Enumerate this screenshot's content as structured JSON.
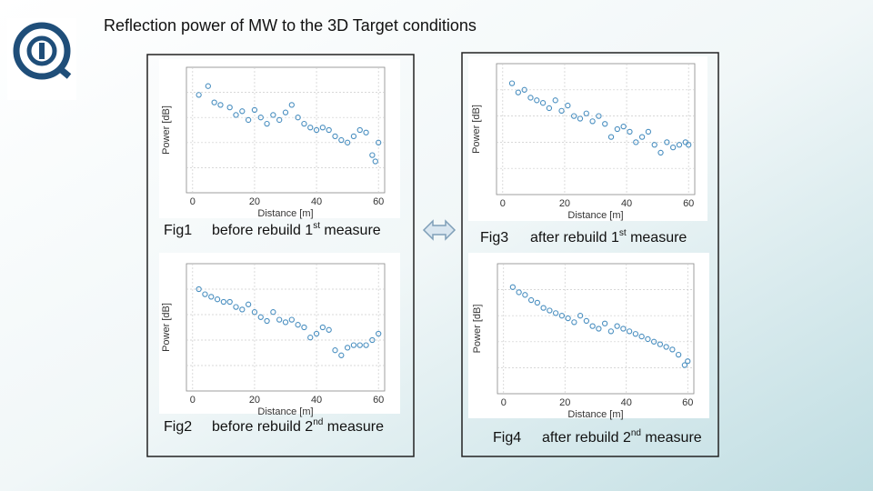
{
  "title": "Reflection power of MW  to the 3D Target conditions",
  "figures": [
    {
      "label": "Fig1",
      "caption": "before rebuild 1",
      "sup": "st",
      "caption_end": " measure",
      "chart_data": {
        "type": "scatter",
        "xlabel": "Distance [m]",
        "ylabel": "Power [dB]",
        "color": "#4a8fc0",
        "xlim": [
          -2,
          62
        ],
        "ylim": [
          0,
          100
        ],
        "xticks": [
          0,
          20,
          40,
          60
        ],
        "x": [
          2,
          5,
          7,
          9,
          12,
          14,
          16,
          18,
          20,
          22,
          24,
          26,
          28,
          30,
          32,
          34,
          36,
          38,
          40,
          42,
          44,
          46,
          48,
          50,
          52,
          54,
          56,
          58,
          59,
          60
        ],
        "values": [
          78,
          85,
          72,
          70,
          68,
          62,
          65,
          58,
          66,
          60,
          55,
          62,
          58,
          64,
          70,
          60,
          55,
          52,
          50,
          52,
          50,
          45,
          42,
          40,
          45,
          50,
          48,
          30,
          25,
          40
        ]
      }
    },
    {
      "label": "Fig2",
      "caption": "before rebuild 2",
      "sup": "nd",
      "caption_end": " measure",
      "chart_data": {
        "type": "scatter",
        "xlabel": "Distance [m]",
        "ylabel": "Power [dB]",
        "color": "#4a8fc0",
        "xlim": [
          -2,
          62
        ],
        "ylim": [
          0,
          100
        ],
        "xticks": [
          0,
          20,
          40,
          60
        ],
        "x": [
          2,
          4,
          6,
          8,
          10,
          12,
          14,
          16,
          18,
          20,
          22,
          24,
          26,
          28,
          30,
          32,
          34,
          36,
          38,
          40,
          42,
          44,
          46,
          48,
          50,
          52,
          54,
          56,
          58,
          60
        ],
        "values": [
          80,
          76,
          74,
          72,
          70,
          70,
          66,
          64,
          68,
          62,
          58,
          55,
          62,
          56,
          54,
          56,
          52,
          50,
          42,
          45,
          50,
          48,
          32,
          28,
          34,
          36,
          36,
          36,
          40,
          45
        ]
      }
    },
    {
      "label": "Fig3",
      "caption": "after rebuild 1",
      "sup": "st",
      "caption_end": " measure",
      "chart_data": {
        "type": "scatter",
        "xlabel": "Distance [m]",
        "ylabel": "Power [dB]",
        "color": "#4a8fc0",
        "xlim": [
          -2,
          62
        ],
        "ylim": [
          0,
          100
        ],
        "xticks": [
          0,
          20,
          40,
          60
        ],
        "x": [
          3,
          5,
          7,
          9,
          11,
          13,
          15,
          17,
          19,
          21,
          23,
          25,
          27,
          29,
          31,
          33,
          35,
          37,
          39,
          41,
          43,
          45,
          47,
          49,
          51,
          53,
          55,
          57,
          59,
          60
        ],
        "values": [
          85,
          78,
          80,
          74,
          72,
          70,
          66,
          72,
          64,
          68,
          60,
          58,
          62,
          56,
          60,
          54,
          44,
          50,
          52,
          48,
          40,
          44,
          48,
          38,
          32,
          40,
          36,
          38,
          40,
          38
        ]
      }
    },
    {
      "label": "Fig4",
      "caption": "after rebuild 2",
      "sup": "nd",
      "caption_end": " measure",
      "chart_data": {
        "type": "scatter",
        "xlabel": "Distance [m]",
        "ylabel": "Power [dB]",
        "color": "#4a8fc0",
        "xlim": [
          -2,
          62
        ],
        "ylim": [
          0,
          100
        ],
        "xticks": [
          0,
          20,
          40,
          60
        ],
        "x": [
          3,
          5,
          7,
          9,
          11,
          13,
          15,
          17,
          19,
          21,
          23,
          25,
          27,
          29,
          31,
          33,
          35,
          37,
          39,
          41,
          43,
          45,
          47,
          49,
          51,
          53,
          55,
          57,
          59,
          60
        ],
        "values": [
          82,
          78,
          76,
          72,
          70,
          66,
          64,
          62,
          60,
          58,
          55,
          60,
          56,
          52,
          50,
          54,
          48,
          52,
          50,
          48,
          46,
          44,
          42,
          40,
          38,
          36,
          34,
          30,
          22,
          25
        ]
      }
    }
  ]
}
